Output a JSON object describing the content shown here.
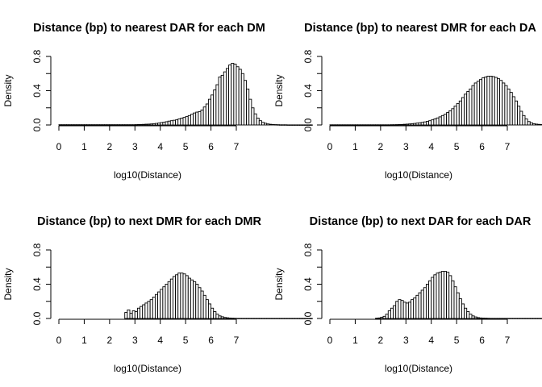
{
  "chart_data": [
    {
      "type": "bar",
      "title": "Distance (bp) to nearest DAR for each DM",
      "xlabel": "log10(Distance)",
      "ylabel": "Density",
      "xlim": [
        0,
        7
      ],
      "ylim": [
        0,
        0.8
      ],
      "xticks": [
        "0",
        "1",
        "2",
        "3",
        "4",
        "5",
        "6",
        "7"
      ],
      "yticks": [
        "0.0",
        "0.4",
        "0.8"
      ],
      "bin_width": 0.1,
      "bin_start": 0.0,
      "values": [
        0.003,
        0.003,
        0.003,
        0.003,
        0.003,
        0.003,
        0.003,
        0.003,
        0.003,
        0.003,
        0.003,
        0.003,
        0.003,
        0.003,
        0.003,
        0.003,
        0.003,
        0.003,
        0.003,
        0.003,
        0.003,
        0.003,
        0.003,
        0.003,
        0.003,
        0.003,
        0.003,
        0.003,
        0.003,
        0.003,
        0.004,
        0.005,
        0.006,
        0.007,
        0.009,
        0.01,
        0.012,
        0.015,
        0.018,
        0.022,
        0.028,
        0.032,
        0.038,
        0.045,
        0.05,
        0.055,
        0.06,
        0.07,
        0.08,
        0.088,
        0.1,
        0.11,
        0.125,
        0.14,
        0.15,
        0.155,
        0.175,
        0.21,
        0.245,
        0.3,
        0.35,
        0.41,
        0.47,
        0.56,
        0.58,
        0.62,
        0.66,
        0.7,
        0.72,
        0.71,
        0.68,
        0.65,
        0.6,
        0.52,
        0.42,
        0.3,
        0.2,
        0.13,
        0.08,
        0.05,
        0.03,
        0.02,
        0.012,
        0.008,
        0.005,
        0.004,
        0.003,
        0.002,
        0.002,
        0.002,
        0.001,
        0.001,
        0.001,
        0.001,
        0.001,
        0.001,
        0.001,
        0.001,
        0.001,
        0.001
      ]
    },
    {
      "type": "bar",
      "title": "Distance (bp) to nearest DMR for each DA",
      "xlabel": "log10(Distance)",
      "ylabel": "Density",
      "xlim": [
        0,
        7
      ],
      "ylim": [
        0,
        0.8
      ],
      "xticks": [
        "0",
        "1",
        "2",
        "3",
        "4",
        "5",
        "6",
        "7"
      ],
      "yticks": [
        "0.0",
        "0.4",
        "0.8"
      ],
      "bin_width": 0.1,
      "bin_start": 0.0,
      "values": [
        0.002,
        0.002,
        0.002,
        0.002,
        0.002,
        0.002,
        0.002,
        0.002,
        0.002,
        0.002,
        0.002,
        0.002,
        0.002,
        0.002,
        0.002,
        0.002,
        0.002,
        0.002,
        0.002,
        0.002,
        0.002,
        0.002,
        0.002,
        0.002,
        0.003,
        0.003,
        0.004,
        0.005,
        0.006,
        0.008,
        0.01,
        0.012,
        0.015,
        0.018,
        0.022,
        0.026,
        0.03,
        0.036,
        0.042,
        0.05,
        0.06,
        0.07,
        0.082,
        0.095,
        0.11,
        0.125,
        0.145,
        0.165,
        0.19,
        0.22,
        0.25,
        0.28,
        0.32,
        0.36,
        0.39,
        0.42,
        0.46,
        0.49,
        0.51,
        0.53,
        0.55,
        0.56,
        0.57,
        0.57,
        0.565,
        0.555,
        0.54,
        0.52,
        0.49,
        0.46,
        0.42,
        0.38,
        0.33,
        0.28,
        0.22,
        0.16,
        0.11,
        0.07,
        0.04,
        0.025,
        0.015,
        0.01,
        0.007,
        0.005,
        0.004,
        0.003,
        0.002,
        0.002,
        0.002,
        0.001,
        0.001,
        0.001,
        0.001,
        0.001,
        0.001,
        0.001,
        0.001,
        0.001,
        0.001,
        0.001
      ]
    },
    {
      "type": "bar",
      "title": "Distance (bp) to next DMR for each DMR",
      "xlabel": "log10(Distance)",
      "ylabel": "Density",
      "xlim": [
        0,
        7
      ],
      "ylim": [
        0,
        0.8
      ],
      "xticks": [
        "0",
        "1",
        "2",
        "3",
        "4",
        "5",
        "6",
        "7"
      ],
      "yticks": [
        "0.0",
        "0.4",
        "0.8"
      ],
      "bin_width": 0.1,
      "bin_start": 0.0,
      "values": [
        0,
        0,
        0,
        0,
        0,
        0,
        0,
        0,
        0,
        0,
        0,
        0,
        0,
        0,
        0,
        0,
        0,
        0,
        0,
        0,
        0,
        0,
        0,
        0,
        0,
        0,
        0.07,
        0.1,
        0.06,
        0.09,
        0.08,
        0.12,
        0.14,
        0.16,
        0.18,
        0.2,
        0.22,
        0.25,
        0.28,
        0.31,
        0.34,
        0.37,
        0.4,
        0.43,
        0.46,
        0.49,
        0.51,
        0.53,
        0.53,
        0.52,
        0.5,
        0.47,
        0.45,
        0.43,
        0.4,
        0.36,
        0.32,
        0.27,
        0.22,
        0.17,
        0.12,
        0.08,
        0.05,
        0.03,
        0.02,
        0.012,
        0.008,
        0.005,
        0.003,
        0.002,
        0.001,
        0.001,
        0.001,
        0.001,
        0.001,
        0.001,
        0.001,
        0.001,
        0.001,
        0.001,
        0.001,
        0.001,
        0.001,
        0.001,
        0.001,
        0.001,
        0.001,
        0.001,
        0.001,
        0.001,
        0.001,
        0.001,
        0.001,
        0.001,
        0.001,
        0.001,
        0.001,
        0.001,
        0.001,
        0.001
      ]
    },
    {
      "type": "bar",
      "title": "Distance (bp) to next DAR for each DAR",
      "xlabel": "log10(Distance)",
      "ylabel": "Density",
      "xlim": [
        0,
        7
      ],
      "ylim": [
        0,
        0.8
      ],
      "xticks": [
        "0",
        "1",
        "2",
        "3",
        "4",
        "5",
        "6",
        "7"
      ],
      "yticks": [
        "0.0",
        "0.4",
        "0.8"
      ],
      "bin_width": 0.1,
      "bin_start": 0.0,
      "values": [
        0,
        0,
        0,
        0,
        0,
        0,
        0,
        0,
        0,
        0,
        0,
        0,
        0,
        0,
        0,
        0,
        0,
        0,
        0.003,
        0.006,
        0.015,
        0.025,
        0.05,
        0.09,
        0.12,
        0.15,
        0.2,
        0.22,
        0.21,
        0.19,
        0.18,
        0.19,
        0.22,
        0.24,
        0.27,
        0.3,
        0.33,
        0.36,
        0.4,
        0.44,
        0.48,
        0.51,
        0.53,
        0.54,
        0.55,
        0.55,
        0.54,
        0.5,
        0.44,
        0.37,
        0.3,
        0.23,
        0.17,
        0.12,
        0.08,
        0.05,
        0.03,
        0.018,
        0.01,
        0.006,
        0.004,
        0.003,
        0.002,
        0.001,
        0.001,
        0.001,
        0.001,
        0.001,
        0.001,
        0.001,
        0.001,
        0.001,
        0.001,
        0.001,
        0.001,
        0.001,
        0.001,
        0.001,
        0.001,
        0.001,
        0.001,
        0.001,
        0.001,
        0.001,
        0.001,
        0.001,
        0.001,
        0.001,
        0.001,
        0.001,
        0.001,
        0.001,
        0.001,
        0.001,
        0.001,
        0.001,
        0.001,
        0.001,
        0.001,
        0.001
      ]
    }
  ]
}
